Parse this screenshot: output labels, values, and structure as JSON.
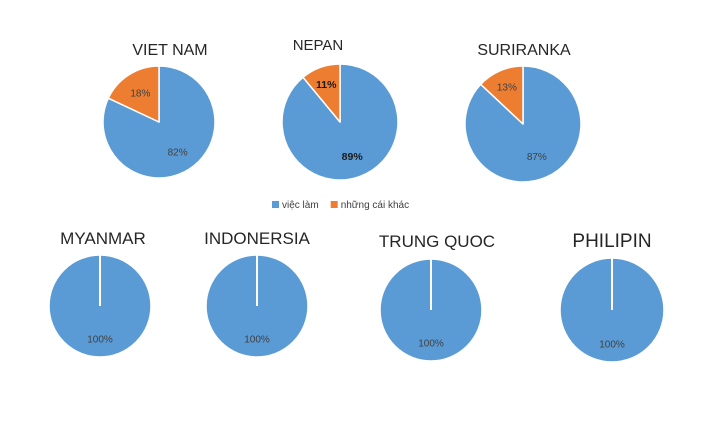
{
  "colors": {
    "work": "#5B9BD5",
    "other": "#ED7D31"
  },
  "legend": [
    {
      "name": "việc làm",
      "color": "#5B9BD5"
    },
    {
      "name": "những cái khác",
      "color": "#ED7D31"
    }
  ],
  "chart_data": [
    {
      "type": "pie",
      "title": "VIET NAM",
      "series": [
        {
          "name": "việc làm",
          "value": 82,
          "label": "82%"
        },
        {
          "name": "những cái khác",
          "value": 18,
          "label": "18%"
        }
      ]
    },
    {
      "type": "pie",
      "title": "NEPAN",
      "series": [
        {
          "name": "việc làm",
          "value": 89,
          "label": "89%"
        },
        {
          "name": "những cái khác",
          "value": 11,
          "label": "11%"
        }
      ]
    },
    {
      "type": "pie",
      "title": "SURIRANKA",
      "series": [
        {
          "name": "việc làm",
          "value": 87,
          "label": "87%"
        },
        {
          "name": "những cái khác",
          "value": 13,
          "label": "13%"
        }
      ]
    },
    {
      "type": "pie",
      "title": "MYANMAR",
      "series": [
        {
          "name": "việc làm",
          "value": 100,
          "label": "100%"
        }
      ]
    },
    {
      "type": "pie",
      "title": "INDONERSIA",
      "series": [
        {
          "name": "việc làm",
          "value": 100,
          "label": "100%"
        }
      ]
    },
    {
      "type": "pie",
      "title": "TRUNG QUOC",
      "series": [
        {
          "name": "việc làm",
          "value": 100,
          "label": "100%"
        }
      ]
    },
    {
      "type": "pie",
      "title": "PHILIPIN",
      "series": [
        {
          "name": "việc làm",
          "value": 100,
          "label": "100%"
        }
      ]
    }
  ]
}
